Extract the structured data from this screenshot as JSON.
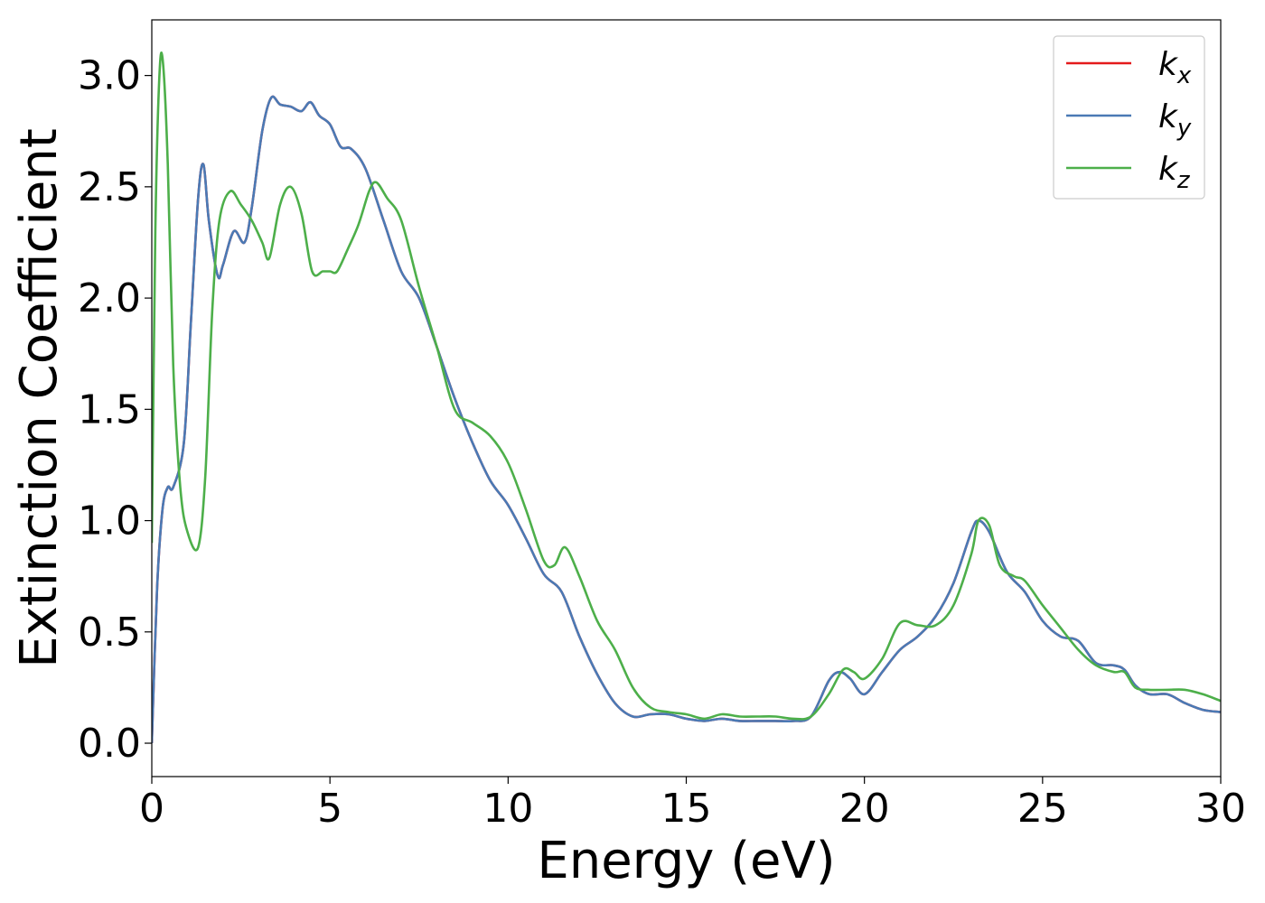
{
  "chart_data": {
    "type": "line",
    "title": "",
    "xlabel": "Energy (eV)",
    "ylabel": "Extinction Coefficient",
    "xlim": [
      0,
      30
    ],
    "ylim": [
      -0.15,
      3.25
    ],
    "xticks": [
      0,
      5,
      10,
      15,
      20,
      25,
      30
    ],
    "xtick_labels": [
      "0",
      "5",
      "10",
      "15",
      "20",
      "25",
      "30"
    ],
    "yticks": [
      0.0,
      0.5,
      1.0,
      1.5,
      2.0,
      2.5,
      3.0
    ],
    "ytick_labels": [
      "0.0",
      "0.5",
      "1.0",
      "1.5",
      "2.0",
      "2.5",
      "3.0"
    ],
    "grid": false,
    "legend_position": "top-right",
    "series": [
      {
        "name": "k_x",
        "color": "#e41a1c",
        "x": [
          0,
          0.15,
          0.3,
          0.45,
          0.6,
          0.9,
          1.1,
          1.3,
          1.45,
          1.6,
          1.85,
          2.0,
          2.3,
          2.6,
          2.8,
          3.1,
          3.35,
          3.6,
          3.9,
          4.2,
          4.45,
          4.7,
          5.0,
          5.3,
          5.6,
          6.0,
          6.5,
          7.0,
          7.5,
          8.0,
          8.5,
          9.0,
          9.5,
          10.0,
          10.5,
          11.0,
          11.5,
          12.0,
          12.5,
          13.0,
          13.5,
          14.0,
          14.5,
          15.0,
          15.5,
          16.0,
          16.5,
          17.0,
          17.5,
          18.0,
          18.5,
          19.0,
          19.3,
          19.6,
          20.0,
          20.5,
          21.0,
          21.5,
          22.0,
          22.5,
          23.0,
          23.2,
          23.5,
          24.0,
          24.5,
          25.0,
          25.5,
          26.0,
          26.5,
          27.0,
          27.3,
          27.6,
          28.0,
          28.5,
          29.0,
          29.5,
          30.0
        ],
        "y": [
          0.0,
          0.7,
          1.05,
          1.15,
          1.15,
          1.35,
          1.9,
          2.45,
          2.6,
          2.35,
          2.1,
          2.15,
          2.3,
          2.25,
          2.4,
          2.75,
          2.9,
          2.87,
          2.86,
          2.84,
          2.88,
          2.82,
          2.78,
          2.68,
          2.67,
          2.58,
          2.35,
          2.12,
          2.0,
          1.78,
          1.55,
          1.35,
          1.18,
          1.07,
          0.92,
          0.76,
          0.68,
          0.48,
          0.31,
          0.18,
          0.12,
          0.13,
          0.13,
          0.11,
          0.1,
          0.11,
          0.1,
          0.1,
          0.1,
          0.1,
          0.12,
          0.28,
          0.32,
          0.29,
          0.22,
          0.32,
          0.42,
          0.48,
          0.57,
          0.72,
          0.95,
          1.0,
          0.95,
          0.77,
          0.68,
          0.55,
          0.48,
          0.46,
          0.36,
          0.35,
          0.33,
          0.26,
          0.22,
          0.22,
          0.18,
          0.15,
          0.14
        ]
      },
      {
        "name": "k_y",
        "color": "#4a7ab5",
        "x": [
          0,
          0.15,
          0.3,
          0.45,
          0.6,
          0.9,
          1.1,
          1.3,
          1.45,
          1.6,
          1.85,
          2.0,
          2.3,
          2.6,
          2.8,
          3.1,
          3.35,
          3.6,
          3.9,
          4.2,
          4.45,
          4.7,
          5.0,
          5.3,
          5.6,
          6.0,
          6.5,
          7.0,
          7.5,
          8.0,
          8.5,
          9.0,
          9.5,
          10.0,
          10.5,
          11.0,
          11.5,
          12.0,
          12.5,
          13.0,
          13.5,
          14.0,
          14.5,
          15.0,
          15.5,
          16.0,
          16.5,
          17.0,
          17.5,
          18.0,
          18.5,
          19.0,
          19.3,
          19.6,
          20.0,
          20.5,
          21.0,
          21.5,
          22.0,
          22.5,
          23.0,
          23.2,
          23.5,
          24.0,
          24.5,
          25.0,
          25.5,
          26.0,
          26.5,
          27.0,
          27.3,
          27.6,
          28.0,
          28.5,
          29.0,
          29.5,
          30.0
        ],
        "y": [
          0.0,
          0.7,
          1.05,
          1.15,
          1.15,
          1.35,
          1.9,
          2.45,
          2.6,
          2.35,
          2.1,
          2.15,
          2.3,
          2.25,
          2.4,
          2.75,
          2.9,
          2.87,
          2.86,
          2.84,
          2.88,
          2.82,
          2.78,
          2.68,
          2.67,
          2.58,
          2.35,
          2.12,
          2.0,
          1.78,
          1.55,
          1.35,
          1.18,
          1.07,
          0.92,
          0.76,
          0.68,
          0.48,
          0.31,
          0.18,
          0.12,
          0.13,
          0.13,
          0.11,
          0.1,
          0.11,
          0.1,
          0.1,
          0.1,
          0.1,
          0.12,
          0.28,
          0.32,
          0.29,
          0.22,
          0.32,
          0.42,
          0.48,
          0.57,
          0.72,
          0.95,
          1.0,
          0.95,
          0.77,
          0.68,
          0.55,
          0.48,
          0.46,
          0.36,
          0.35,
          0.33,
          0.26,
          0.22,
          0.22,
          0.18,
          0.15,
          0.14
        ]
      },
      {
        "name": "k_z",
        "color": "#4daf4a",
        "x": [
          0,
          0.1,
          0.2,
          0.3,
          0.45,
          0.6,
          0.8,
          1.0,
          1.3,
          1.5,
          1.7,
          1.9,
          2.2,
          2.5,
          2.8,
          3.1,
          3.3,
          3.6,
          3.9,
          4.2,
          4.5,
          4.8,
          5.0,
          5.2,
          5.5,
          5.8,
          6.1,
          6.3,
          6.6,
          7.0,
          7.5,
          8.0,
          8.5,
          9.0,
          9.5,
          10.0,
          10.5,
          11.0,
          11.3,
          11.6,
          12.0,
          12.5,
          13.0,
          13.5,
          14.0,
          14.5,
          15.0,
          15.5,
          16.0,
          16.5,
          17.0,
          17.5,
          18.0,
          18.5,
          19.0,
          19.4,
          19.7,
          20.0,
          20.5,
          21.0,
          21.5,
          22.0,
          22.5,
          23.0,
          23.2,
          23.5,
          23.8,
          24.2,
          24.5,
          25.0,
          25.5,
          26.0,
          26.5,
          27.0,
          27.3,
          27.6,
          28.0,
          28.5,
          29.0,
          29.5,
          30.0
        ],
        "y": [
          0.9,
          2.3,
          2.95,
          3.08,
          2.6,
          1.7,
          1.15,
          0.95,
          0.88,
          1.2,
          1.95,
          2.35,
          2.48,
          2.42,
          2.35,
          2.25,
          2.18,
          2.42,
          2.5,
          2.38,
          2.12,
          2.12,
          2.12,
          2.12,
          2.22,
          2.33,
          2.48,
          2.52,
          2.45,
          2.35,
          2.05,
          1.78,
          1.5,
          1.44,
          1.38,
          1.26,
          1.05,
          0.82,
          0.8,
          0.88,
          0.75,
          0.55,
          0.42,
          0.25,
          0.16,
          0.14,
          0.13,
          0.11,
          0.13,
          0.12,
          0.12,
          0.12,
          0.11,
          0.12,
          0.22,
          0.33,
          0.32,
          0.29,
          0.38,
          0.54,
          0.53,
          0.53,
          0.62,
          0.85,
          1.0,
          0.98,
          0.8,
          0.75,
          0.73,
          0.62,
          0.52,
          0.42,
          0.35,
          0.32,
          0.32,
          0.25,
          0.24,
          0.24,
          0.24,
          0.22,
          0.19
        ]
      }
    ]
  },
  "legend": {
    "entries": [
      {
        "base": "k",
        "sub": "x",
        "color": "#e41a1c"
      },
      {
        "base": "k",
        "sub": "y",
        "color": "#4a7ab5"
      },
      {
        "base": "k",
        "sub": "z",
        "color": "#4daf4a"
      }
    ]
  }
}
